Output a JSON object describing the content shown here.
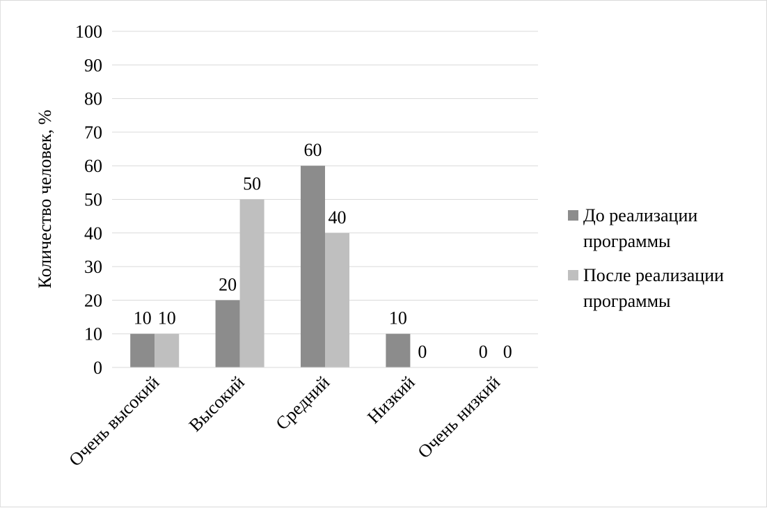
{
  "chart_data": {
    "type": "bar",
    "title": "",
    "xlabel": "",
    "ylabel": "Количество человек, %",
    "ylim": [
      0,
      100
    ],
    "yticks": [
      0,
      10,
      20,
      30,
      40,
      50,
      60,
      70,
      80,
      90,
      100
    ],
    "grid": true,
    "legend_position": "right",
    "categories": [
      "Очень высокий",
      "Высокий",
      "Средний",
      "Низкий",
      "Очень низкий"
    ],
    "series": [
      {
        "name": "До реализации программы",
        "values": [
          10,
          20,
          60,
          10,
          0
        ],
        "color": "#8c8c8c"
      },
      {
        "name": "После реализации программы",
        "values": [
          10,
          50,
          40,
          0,
          0
        ],
        "color": "#bfbfbf"
      }
    ],
    "legend_lines": [
      [
        "До реализации",
        "программы"
      ],
      [
        "После реализации",
        "программы"
      ]
    ]
  }
}
